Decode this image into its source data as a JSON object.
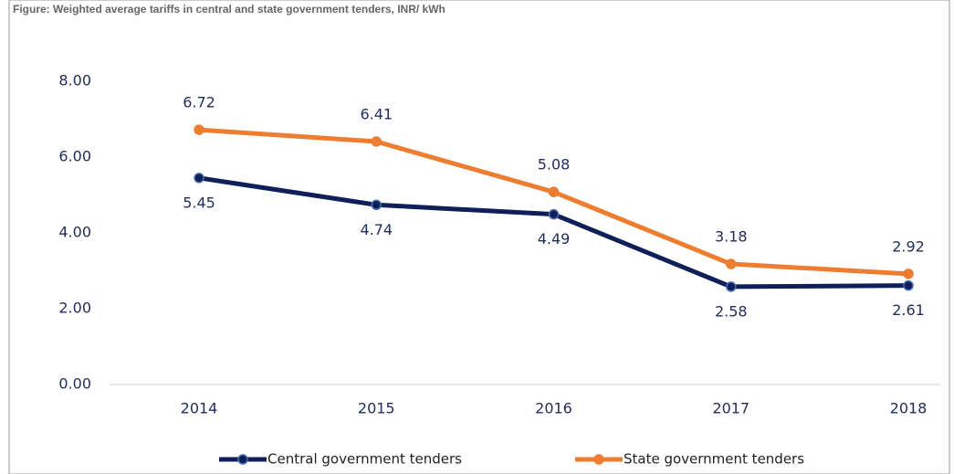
{
  "chart_data": {
    "type": "line",
    "title": "Figure: Weighted average tariffs in central and state government tenders, INR/ kWh",
    "categories": [
      "2014",
      "2015",
      "2016",
      "2017",
      "2018"
    ],
    "series": [
      {
        "name": "Central government tenders",
        "color": "#0f1f5a",
        "values": [
          5.45,
          4.74,
          4.49,
          2.58,
          2.61
        ]
      },
      {
        "name": "State government tenders",
        "color": "#ed7d31",
        "values": [
          6.72,
          6.41,
          5.08,
          3.18,
          2.92
        ]
      }
    ],
    "ylim": [
      0,
      8
    ],
    "yticks": [
      {
        "value": 0,
        "label": "0.00"
      },
      {
        "value": 2,
        "label": "2.00"
      },
      {
        "value": 4,
        "label": "4.00"
      },
      {
        "value": 6,
        "label": "6.00"
      },
      {
        "value": 8,
        "label": "8.00"
      }
    ],
    "grid": false,
    "legend": "bottom"
  }
}
